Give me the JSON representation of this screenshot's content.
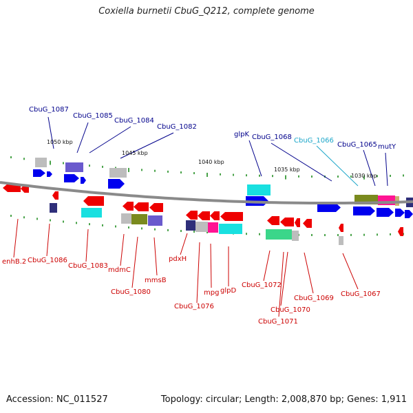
{
  "title": "Coxiella burnetii CbuG_Q212, complete genome",
  "footer": {
    "accession": "Accession: NC_011527",
    "stats": "Topology: circular; Length: 2,008,870 bp; Genes: 1,911"
  },
  "colors": {
    "backbone": "#8a8a8a",
    "plus_strand_gene": "#0000ee",
    "minus_strand_gene": "#ee0000",
    "tick": "#1a8a1a",
    "plus_label": "#00008b",
    "minus_label": "#cc0000",
    "highlight_label": "#1ba6c9",
    "cog_purple": "#6a5acd",
    "cog_gray": "#bdbdbd",
    "cog_cyan": "#19e0e0",
    "cog_olive": "#7a8a1e",
    "cog_magenta": "#ff1493",
    "cog_green": "#3bd68a",
    "cog_navy": "#2f2f7a",
    "cog_tan": "#c8b070"
  },
  "scale_labels": [
    "1050 kbp",
    "1045 kbp",
    "1040 kbp",
    "1035 kbp",
    "1030 kbp"
  ],
  "top_labels": [
    "CbuG_1087",
    "CbuG_1085",
    "CbuG_1084",
    "CbuG_1082",
    "glpK",
    "CbuG_1068",
    "CbuG_1066",
    "CbuG_1065",
    "mutY"
  ],
  "bottom_labels": [
    "enhB.2",
    "CbuG_1086",
    "CbuG_1083",
    "mdmC",
    "CbuG_1080",
    "mmsB",
    "pdxH",
    "CbuG_1076",
    "mpg",
    "glpD",
    "CbuG_1072",
    "CbuG_1070",
    "CbuG_1071",
    "CbuG_1069",
    "CbuG_1067"
  ]
}
